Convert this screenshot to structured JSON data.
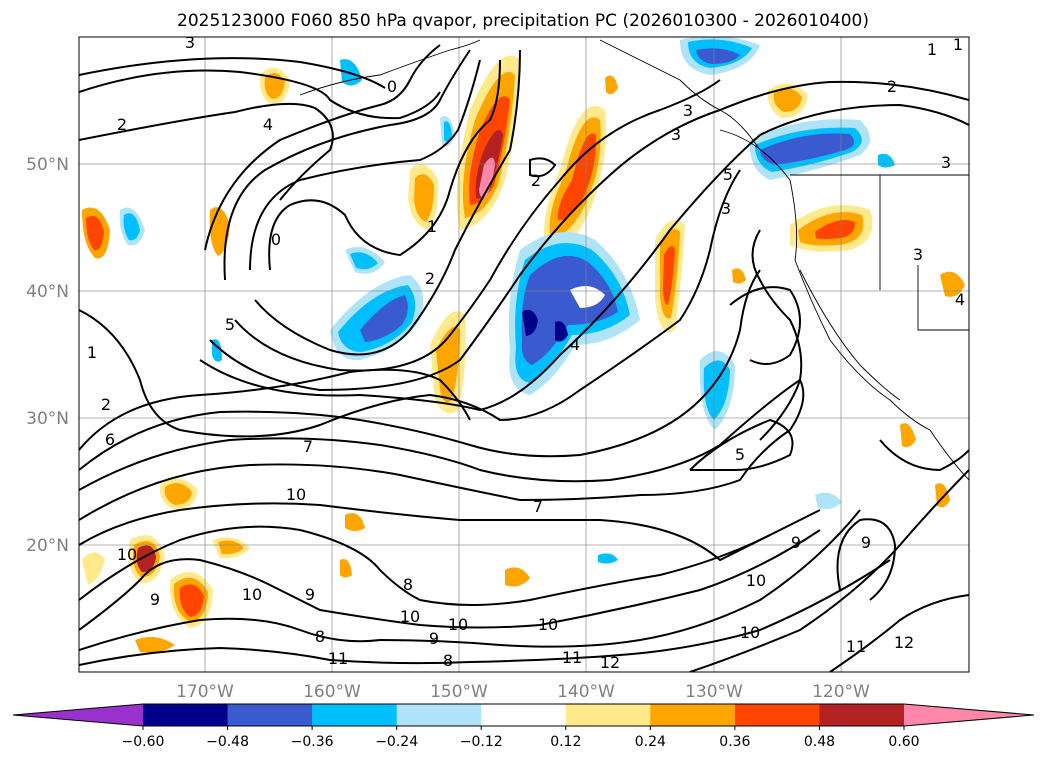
{
  "chart_data": {
    "type": "heatmap",
    "title": "2025123000 F060 850 hPa qvapor, precipitation PC (2026010300 - 2026010400)",
    "map": {
      "lon_range": [
        180,
        110
      ],
      "lat_range": [
        10,
        60
      ],
      "lon_ticks": [
        "170°W",
        "160°W",
        "150°W",
        "140°W",
        "130°W",
        "120°W"
      ],
      "lat_ticks": [
        "20°N",
        "30°N",
        "40°N",
        "50°N"
      ],
      "gridlines": true
    },
    "colorbar": {
      "extend": "both",
      "orientation": "horizontal",
      "bounds": [
        -0.6,
        -0.48,
        -0.36,
        -0.24,
        -0.12,
        0.12,
        0.24,
        0.36,
        0.48,
        0.6
      ],
      "tick_labels": [
        "−0.60",
        "−0.48",
        "−0.36",
        "−0.24",
        "−0.12",
        "0.12",
        "0.24",
        "0.36",
        "0.48",
        "0.60"
      ],
      "colors": [
        "#9932cc",
        "#00008b",
        "#3a5bd0",
        "#00bfff",
        "#aee3f8",
        "#ffffff",
        "#ffe98a",
        "#ffa500",
        "#ff4500",
        "#b22222",
        "#ff88aa"
      ]
    },
    "contour_labels": [
      "3",
      "2",
      "4",
      "0",
      "1",
      "2",
      "3",
      "1",
      "2",
      "3",
      "3",
      "0",
      "1",
      "2",
      "5",
      "4",
      "3",
      "5",
      "1",
      "2",
      "6",
      "7",
      "10",
      "7",
      "5",
      "8",
      "9",
      "10",
      "10",
      "9",
      "8",
      "9",
      "10",
      "10",
      "11",
      "11",
      "12",
      "10",
      "10",
      "9",
      "11",
      "12",
      "8",
      "10",
      "3",
      "4",
      "9"
    ],
    "series": [
      {
        "name": "qvapor 850 hPa contours",
        "levels": [
          0,
          1,
          2,
          3,
          4,
          5,
          6,
          7,
          8,
          9,
          10,
          11,
          12
        ]
      },
      {
        "name": "precipitation PC shading",
        "levels": [
          -0.6,
          -0.48,
          -0.36,
          -0.24,
          -0.12,
          0.12,
          0.24,
          0.36,
          0.48,
          0.6
        ]
      }
    ]
  }
}
